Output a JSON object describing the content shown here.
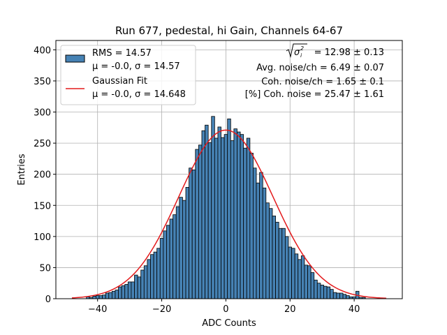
{
  "chart_data": {
    "type": "bar",
    "title": "Run 677, pedestal, hi Gain, Channels 64-67",
    "xlabel": "ADC Counts",
    "ylabel": "Entries",
    "xlim": [
      -53,
      55
    ],
    "ylim": [
      0,
      415
    ],
    "xticks": [
      -40,
      -20,
      0,
      20,
      40
    ],
    "yticks": [
      0,
      50,
      100,
      150,
      200,
      250,
      300,
      350,
      400
    ],
    "grid": true,
    "bin_width": 1,
    "histogram": {
      "bin_centers": [
        -43,
        -42,
        -41,
        -40,
        -39,
        -38,
        -37,
        -36,
        -35,
        -34,
        -33,
        -32,
        -31,
        -30,
        -29,
        -28,
        -27,
        -26,
        -25,
        -24,
        -23,
        -22,
        -21,
        -20,
        -19,
        -18,
        -17,
        -16,
        -15,
        -14,
        -13,
        -12,
        -11,
        -10,
        -9,
        -8,
        -7,
        -6,
        -5,
        -4,
        -3,
        -2,
        -1,
        0,
        1,
        2,
        3,
        4,
        5,
        6,
        7,
        8,
        9,
        10,
        11,
        12,
        13,
        14,
        15,
        16,
        17,
        18,
        19,
        20,
        21,
        22,
        23,
        24,
        25,
        26,
        27,
        28,
        29,
        30,
        31,
        32,
        33,
        34,
        35,
        36,
        37,
        38,
        39,
        40,
        41,
        42,
        43
      ],
      "counts": [
        3,
        2,
        4,
        5,
        5,
        6,
        9,
        10,
        12,
        14,
        19,
        21,
        23,
        27,
        27,
        38,
        35,
        46,
        53,
        63,
        71,
        75,
        81,
        97,
        109,
        118,
        128,
        135,
        148,
        163,
        158,
        179,
        210,
        207,
        240,
        247,
        270,
        279,
        251,
        293,
        258,
        276,
        259,
        264,
        289,
        254,
        273,
        268,
        264,
        242,
        258,
        234,
        210,
        186,
        203,
        178,
        154,
        145,
        133,
        123,
        113,
        113,
        100,
        83,
        81,
        72,
        63,
        69,
        54,
        53,
        42,
        30,
        25,
        22,
        20,
        19,
        15,
        10,
        9,
        9,
        7,
        5,
        3,
        3,
        12,
        2,
        2
      ],
      "color": "#4682b4",
      "edgecolor": "#000000",
      "legend": "RMS = 14.57",
      "legend_sub": "μ = -0.0, σ = 14.57"
    },
    "fit": {
      "type": "gaussian",
      "mu": -0.0,
      "sigma": 14.648,
      "amplitude": 271,
      "x_range": [
        -48,
        50
      ],
      "color": "#e31a1c",
      "legend": "Gaussian Fit",
      "legend_sub": "μ = -0.0, σ = 14.648"
    },
    "legend_position": "upper left",
    "annotations": [
      {
        "prefix": "",
        "text": " = 12.98 ± 0.13",
        "has_sqrt": true
      },
      {
        "prefix": "",
        "text": "Avg. noise/ch = 6.49 ± 0.07",
        "has_sqrt": false
      },
      {
        "prefix": "",
        "text": "Coh. noise/ch = 1.65 ± 0.1",
        "has_sqrt": false
      },
      {
        "prefix": "",
        "text": "[%] Coh. noise = 25.47 ± 1.61",
        "has_sqrt": false
      }
    ]
  }
}
